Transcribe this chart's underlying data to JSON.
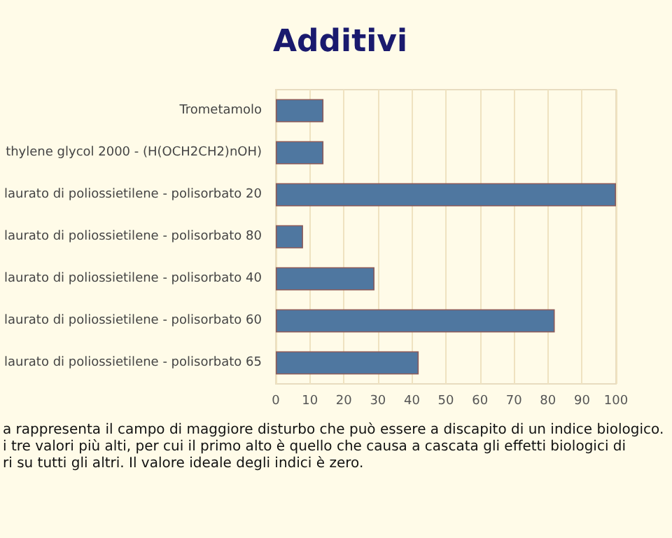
{
  "chart_data": {
    "type": "bar",
    "orientation": "horizontal",
    "title": "Additivi",
    "categories": [
      "Trometamolo",
      "thylene glycol 2000 - (H(OCH2CH2)nOH)",
      "laurato di poliossietilene - polisorbato 20",
      "laurato di poliossietilene - polisorbato 80",
      "laurato di poliossietilene - polisorbato 40",
      "laurato di poliossietilene - polisorbato 60",
      "laurato di poliossietilene - polisorbato 65"
    ],
    "values": [
      14,
      14,
      100,
      8,
      29,
      82,
      42
    ],
    "color": "#4f77a0",
    "xlim": [
      0,
      100
    ],
    "xticks": [
      0,
      10,
      20,
      30,
      40,
      50,
      60,
      70,
      80,
      90,
      100
    ],
    "grid": "x",
    "annotations": [
      "a rappresenta il campo di maggiore disturbo che può essere a discapito di un indice biologico.",
      "i tre valori più alti, per cui il primo alto è quello che causa a cascata gli effetti biologici di",
      "ri su tutti gli altri. Il valore ideale degli indici è zero."
    ]
  }
}
